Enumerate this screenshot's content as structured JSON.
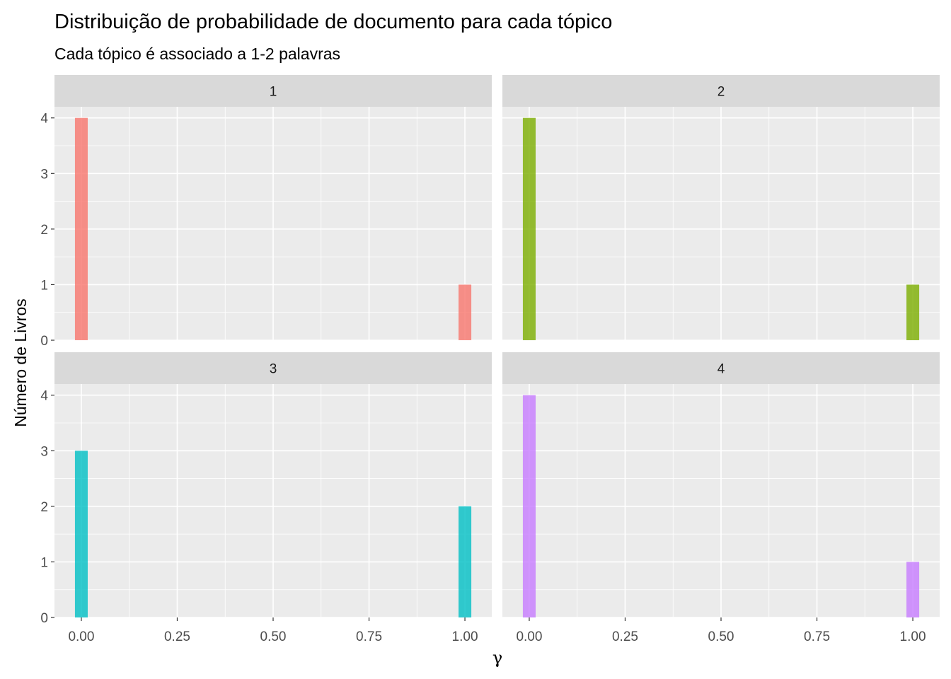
{
  "chart_data": {
    "type": "bar",
    "title": "Distribuição de probabilidade de documento para cada tópico",
    "subtitle": "Cada tópico é associado a 1-2 palavras",
    "xlabel": "γ",
    "ylabel": "Número de Livros",
    "xlim": [
      -0.07,
      1.07
    ],
    "ylim": [
      0,
      4.2
    ],
    "x_ticks": [
      0.0,
      0.25,
      0.5,
      0.75,
      1.0
    ],
    "x_tick_labels": [
      "0.00",
      "0.25",
      "0.50",
      "0.75",
      "1.00"
    ],
    "y_ticks": [
      0,
      1,
      2,
      3,
      4
    ],
    "y_tick_labels": [
      "0",
      "1",
      "2",
      "3",
      "4"
    ],
    "bin_width": 0.0333,
    "grid": true,
    "legend": "none",
    "facets": [
      {
        "label": "1",
        "color": "#F8766D",
        "bars": [
          {
            "x": 0.0,
            "count": 4
          },
          {
            "x": 1.0,
            "count": 1
          }
        ]
      },
      {
        "label": "2",
        "color": "#7CAE00",
        "bars": [
          {
            "x": 0.0,
            "count": 4
          },
          {
            "x": 1.0,
            "count": 1
          }
        ]
      },
      {
        "label": "3",
        "color": "#00BFC4",
        "bars": [
          {
            "x": 0.0,
            "count": 3
          },
          {
            "x": 1.0,
            "count": 2
          }
        ]
      },
      {
        "label": "4",
        "color": "#C77CFF",
        "bars": [
          {
            "x": 0.0,
            "count": 4
          },
          {
            "x": 1.0,
            "count": 1
          }
        ]
      }
    ]
  }
}
